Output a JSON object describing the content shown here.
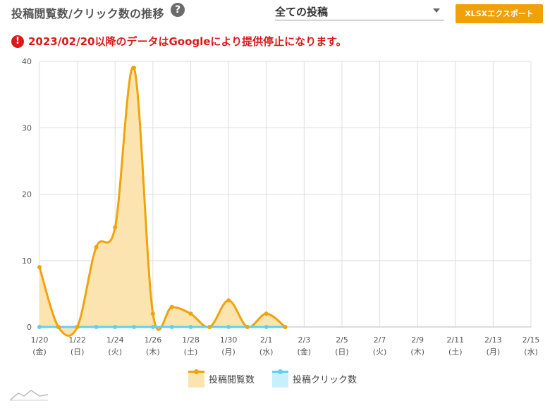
{
  "header": {
    "title": "投稿閲覧数/クリック数の推移",
    "help_icon": "question-circle-icon",
    "filter_value": "全ての投稿",
    "export_label": "XLSXエクスポート"
  },
  "notice": {
    "icon": "alert-circle-icon",
    "text": "2023/02/20以降のデータはGoogleにより提供停止になります。"
  },
  "colors": {
    "accent": "#f2a007",
    "views_line": "#f0a30a",
    "views_fill": "#fce4b0",
    "clicks_line": "#5fd0f0",
    "clicks_fill": "#c8f0fb",
    "alert": "#d91a1a"
  },
  "chart_data": {
    "type": "area",
    "title": "投稿閲覧数/クリック数の推移",
    "ylim": [
      0,
      40
    ],
    "yticks": [
      0,
      10,
      20,
      30,
      40
    ],
    "xlabels": [
      [
        "1/20",
        "(金)"
      ],
      [
        "1/22",
        "(日)"
      ],
      [
        "1/24",
        "(火)"
      ],
      [
        "1/26",
        "(木)"
      ],
      [
        "1/28",
        "(土)"
      ],
      [
        "1/30",
        "(月)"
      ],
      [
        "2/1",
        "(水)"
      ],
      [
        "2/3",
        "(金)"
      ],
      [
        "2/5",
        "(日)"
      ],
      [
        "2/7",
        "(火)"
      ],
      [
        "2/9",
        "(木)"
      ],
      [
        "2/11",
        "(土)"
      ],
      [
        "2/13",
        "(月)"
      ],
      [
        "2/15",
        "(水)"
      ]
    ],
    "x_count": 27,
    "grid": true,
    "legend": "bottom",
    "series": [
      {
        "name": "投稿閲覧数",
        "values": [
          9,
          0,
          0,
          12,
          15,
          39,
          2,
          3,
          2,
          0,
          4,
          0,
          2,
          0
        ]
      },
      {
        "name": "投稿クリック数",
        "values": [
          0,
          0,
          0,
          0,
          0,
          0,
          0,
          0,
          0,
          0,
          0,
          0,
          0,
          0
        ]
      }
    ]
  }
}
